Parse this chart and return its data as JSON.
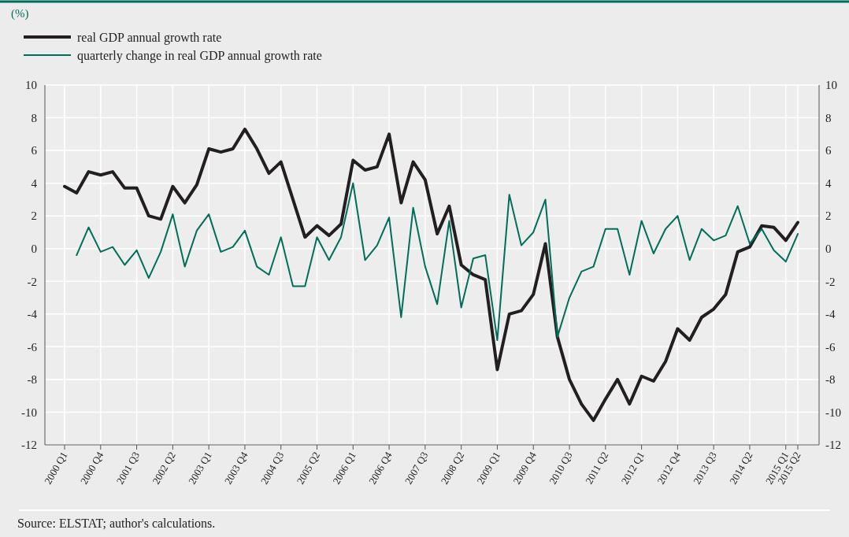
{
  "chart_data": {
    "type": "line",
    "annotations": [
      "(%)",
      "Source: ELSTAT; author's calculations."
    ],
    "categories": [
      "2000 Q1",
      null,
      null,
      "2000 Q4",
      null,
      null,
      "2001 Q3",
      null,
      null,
      "2002 Q2",
      null,
      null,
      "2003 Q1",
      null,
      null,
      "2003 Q4",
      null,
      null,
      "2004 Q3",
      null,
      null,
      "2005 Q2",
      null,
      null,
      "2006 Q1",
      null,
      null,
      "2006 Q4",
      null,
      null,
      "2007 Q3",
      null,
      null,
      "2008 Q2",
      null,
      null,
      "2009 Q1",
      null,
      null,
      "2009 Q4",
      null,
      null,
      "2010 Q3",
      null,
      null,
      "2011 Q2",
      null,
      null,
      "2012 Q1",
      null,
      null,
      "2012 Q4",
      null,
      null,
      "2013 Q3",
      null,
      null,
      "2014 Q2",
      null,
      null,
      "2015 Q1",
      "2015 Q2"
    ],
    "series": [
      {
        "name": "real GDP annual growth rate",
        "color": "#231f20",
        "values": [
          3.8,
          3.4,
          4.7,
          4.5,
          4.7,
          3.7,
          3.7,
          2.0,
          1.8,
          3.8,
          2.8,
          3.9,
          6.1,
          5.9,
          6.1,
          7.3,
          6.1,
          4.6,
          5.3,
          3.0,
          0.7,
          1.4,
          0.8,
          1.5,
          5.4,
          4.8,
          5.0,
          7.0,
          2.8,
          5.3,
          4.2,
          0.9,
          2.6,
          -1.0,
          -1.6,
          -1.9,
          -7.4,
          -4.0,
          -3.8,
          -2.8,
          0.3,
          -5.4,
          -8.0,
          -9.5,
          -10.5,
          -9.2,
          -8.0,
          -9.5,
          -7.8,
          -8.1,
          -6.9,
          -4.9,
          -5.6,
          -4.2,
          -3.7,
          -2.8,
          -0.2,
          0.1,
          1.4,
          1.3,
          0.5,
          1.6
        ]
      },
      {
        "name": "quarterly change in real GDP annual growth rate",
        "color": "#006e5a",
        "values": [
          null,
          -0.4,
          1.3,
          -0.2,
          0.1,
          -1.0,
          -0.1,
          -1.8,
          -0.2,
          2.1,
          -1.1,
          1.1,
          2.1,
          -0.2,
          0.1,
          1.1,
          -1.1,
          -1.6,
          0.7,
          -2.3,
          -2.3,
          0.7,
          -0.7,
          0.7,
          4.0,
          -0.7,
          0.2,
          1.9,
          -4.2,
          2.5,
          -1.1,
          -3.4,
          1.7,
          -3.6,
          -0.6,
          -0.4,
          -5.6,
          3.3,
          0.2,
          1.0,
          3.0,
          -5.4,
          -3.0,
          -1.4,
          -1.1,
          1.2,
          1.2,
          -1.6,
          1.7,
          -0.3,
          1.2,
          2.0,
          -0.7,
          1.2,
          0.5,
          0.8,
          2.6,
          0.3,
          1.2,
          -0.1,
          -0.8,
          0.9
        ]
      }
    ],
    "ylim": [
      -12,
      10
    ],
    "yticks": [
      -12,
      -10,
      -8,
      -6,
      -4,
      -2,
      0,
      2,
      4,
      6,
      8,
      10
    ],
    "y2lim": [
      -12,
      10
    ],
    "y2ticks": [
      -12,
      -10,
      -8,
      -6,
      -4,
      -2,
      0,
      2,
      4,
      6,
      8,
      10
    ],
    "grid": true,
    "legend": "top left",
    "line_style": "solid",
    "marker": "none"
  }
}
